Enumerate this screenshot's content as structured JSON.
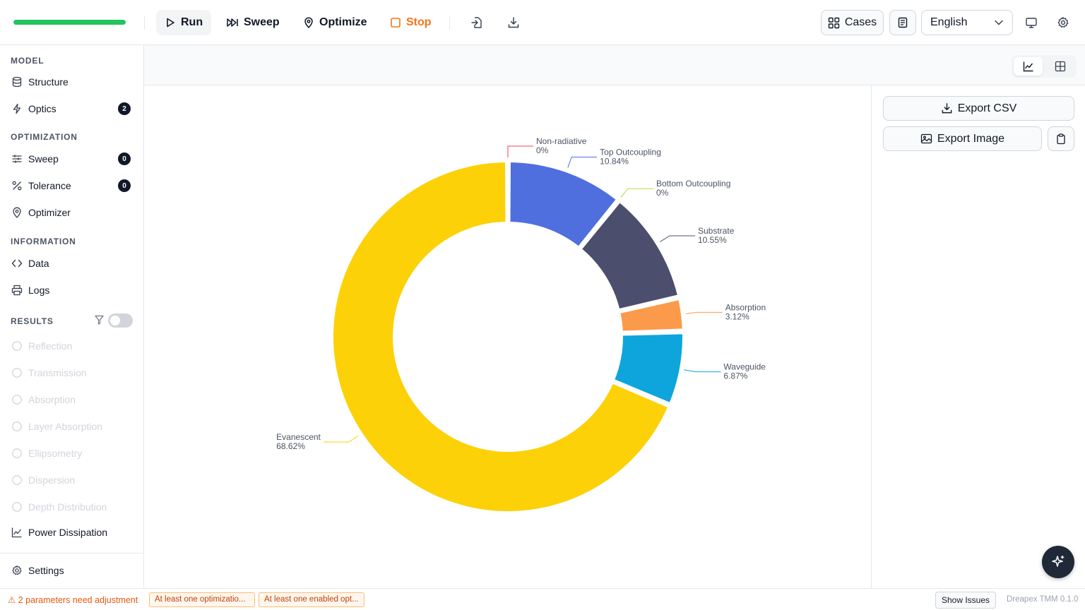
{
  "toolbar": {
    "run": "Run",
    "sweep": "Sweep",
    "optimize": "Optimize",
    "stop": "Stop",
    "cases": "Cases",
    "language": "English",
    "progress": 1.0
  },
  "sidebar": {
    "model_title": "MODEL",
    "structure": "Structure",
    "optics": "Optics",
    "optics_badge": "2",
    "optimization_title": "OPTIMIZATION",
    "sweep": "Sweep",
    "sweep_badge": "0",
    "tolerance": "Tolerance",
    "tolerance_badge": "0",
    "optimizer": "Optimizer",
    "information_title": "INFORMATION",
    "data": "Data",
    "logs": "Logs",
    "results_title": "RESULTS",
    "results": [
      "Reflection",
      "Transmission",
      "Absorption",
      "Layer Absorption",
      "Ellipsometry",
      "Dispersion",
      "Depth Distribution"
    ],
    "power_dissipation": "Power Dissipation",
    "settings": "Settings"
  },
  "panel": {
    "export_csv": "Export CSV",
    "export_image": "Export Image"
  },
  "status": {
    "warning": "2 parameters need adjustment",
    "chip1": "At least one optimizatio...",
    "chip2": "At least one enabled opt...",
    "show_issues": "Show Issues",
    "version": "Dreapex TMM 0.1.0"
  },
  "chart_data": {
    "type": "pie",
    "variant": "donut",
    "series": [
      {
        "name": "Non-radiative",
        "label": "0%",
        "value": 0,
        "color": "#f43f5e"
      },
      {
        "name": "Top Outcoupling",
        "label": "10.84%",
        "value": 10.84,
        "color": "#4f6fdf"
      },
      {
        "name": "Bottom Outcoupling",
        "label": "0%",
        "value": 0,
        "color": "#b5d93a"
      },
      {
        "name": "Substrate",
        "label": "10.55%",
        "value": 10.55,
        "color": "#4b4e6d"
      },
      {
        "name": "Absorption",
        "label": "3.12%",
        "value": 3.12,
        "color": "#fb9a4b"
      },
      {
        "name": "Waveguide",
        "label": "6.87%",
        "value": 6.87,
        "color": "#0ea5dd"
      },
      {
        "name": "Evanescent",
        "label": "68.62%",
        "value": 68.62,
        "color": "#fcd108"
      }
    ]
  }
}
